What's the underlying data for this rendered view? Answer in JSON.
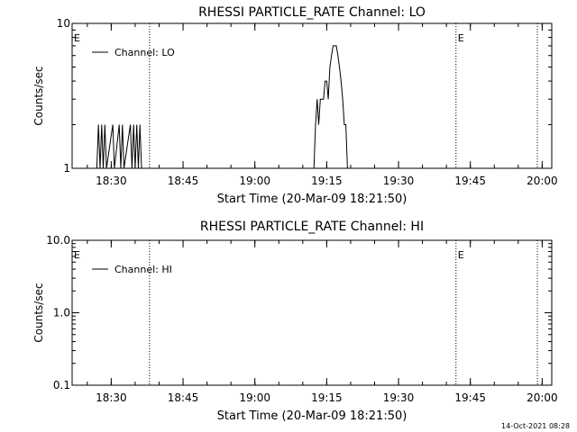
{
  "timestamp": "14-Oct-2021 08:28",
  "chart_data": [
    {
      "type": "line",
      "title": "RHESSI PARTICLE_RATE Channel: LO",
      "xlabel": "Start Time (20-Mar-09 18:21:50)",
      "ylabel": "Counts/sec",
      "yscale": "log",
      "ylim": [
        1,
        10
      ],
      "xlim": [
        "18:21:50",
        "20:02:00"
      ],
      "x_tick_labels": [
        "18:30",
        "18:45",
        "19:00",
        "19:15",
        "19:30",
        "19:45",
        "20:00"
      ],
      "y_tick_labels": [
        "1",
        "10"
      ],
      "legend": {
        "entries": [
          "Channel: LO"
        ],
        "placement": "top-left"
      },
      "event_markers": [
        {
          "label": "E",
          "time": "18:21:50"
        },
        {
          "label": "E",
          "time": "19:42:00"
        }
      ],
      "vertical_lines": [
        "18:38:00",
        "19:42:00",
        "19:59:00"
      ],
      "series": [
        {
          "name": "Channel: LO",
          "points": [
            [
              "18:27:00",
              1
            ],
            [
              "18:27:20",
              2
            ],
            [
              "18:27:40",
              1
            ],
            [
              "18:28:00",
              2
            ],
            [
              "18:28:20",
              1
            ],
            [
              "18:28:40",
              2
            ],
            [
              "18:29:00",
              1
            ],
            [
              "18:30:20",
              2
            ],
            [
              "18:30:40",
              1
            ],
            [
              "18:31:40",
              2
            ],
            [
              "18:32:00",
              1
            ],
            [
              "18:32:20",
              2
            ],
            [
              "18:32:40",
              1
            ],
            [
              "18:34:00",
              2
            ],
            [
              "18:34:20",
              1
            ],
            [
              "18:34:40",
              2
            ],
            [
              "18:35:00",
              1
            ],
            [
              "18:35:20",
              2
            ],
            [
              "18:35:40",
              1
            ],
            [
              "18:36:00",
              2
            ],
            [
              "18:36:20",
              1
            ],
            [
              "19:12:20",
              1
            ],
            [
              "19:12:40",
              2
            ],
            [
              "19:13:00",
              3
            ],
            [
              "19:13:20",
              2
            ],
            [
              "19:13:40",
              3
            ],
            [
              "19:14:00",
              3
            ],
            [
              "19:14:20",
              3
            ],
            [
              "19:14:40",
              4
            ],
            [
              "19:15:00",
              4
            ],
            [
              "19:15:20",
              3
            ],
            [
              "19:15:40",
              5
            ],
            [
              "19:16:00",
              6
            ],
            [
              "19:16:20",
              7
            ],
            [
              "19:16:40",
              7
            ],
            [
              "19:17:00",
              7
            ],
            [
              "19:17:20",
              6
            ],
            [
              "19:17:40",
              5
            ],
            [
              "19:18:00",
              4
            ],
            [
              "19:18:20",
              3
            ],
            [
              "19:18:40",
              2
            ],
            [
              "19:19:00",
              2
            ],
            [
              "19:19:20",
              1
            ]
          ]
        }
      ]
    },
    {
      "type": "line",
      "title": "RHESSI PARTICLE_RATE Channel: HI",
      "xlabel": "Start Time (20-Mar-09 18:21:50)",
      "ylabel": "Counts/sec",
      "yscale": "log",
      "ylim": [
        0.1,
        10
      ],
      "xlim": [
        "18:21:50",
        "20:02:00"
      ],
      "x_tick_labels": [
        "18:30",
        "18:45",
        "19:00",
        "19:15",
        "19:30",
        "19:45",
        "20:00"
      ],
      "y_tick_labels": [
        "0.1",
        "1.0",
        "10.0"
      ],
      "legend": {
        "entries": [
          "Channel: HI"
        ],
        "placement": "top-left"
      },
      "event_markers": [
        {
          "label": "E",
          "time": "18:21:50"
        },
        {
          "label": "E",
          "time": "19:42:00"
        }
      ],
      "vertical_lines": [
        "18:38:00",
        "19:42:00",
        "19:59:00"
      ],
      "series": [
        {
          "name": "Channel: HI",
          "points": []
        }
      ]
    }
  ]
}
